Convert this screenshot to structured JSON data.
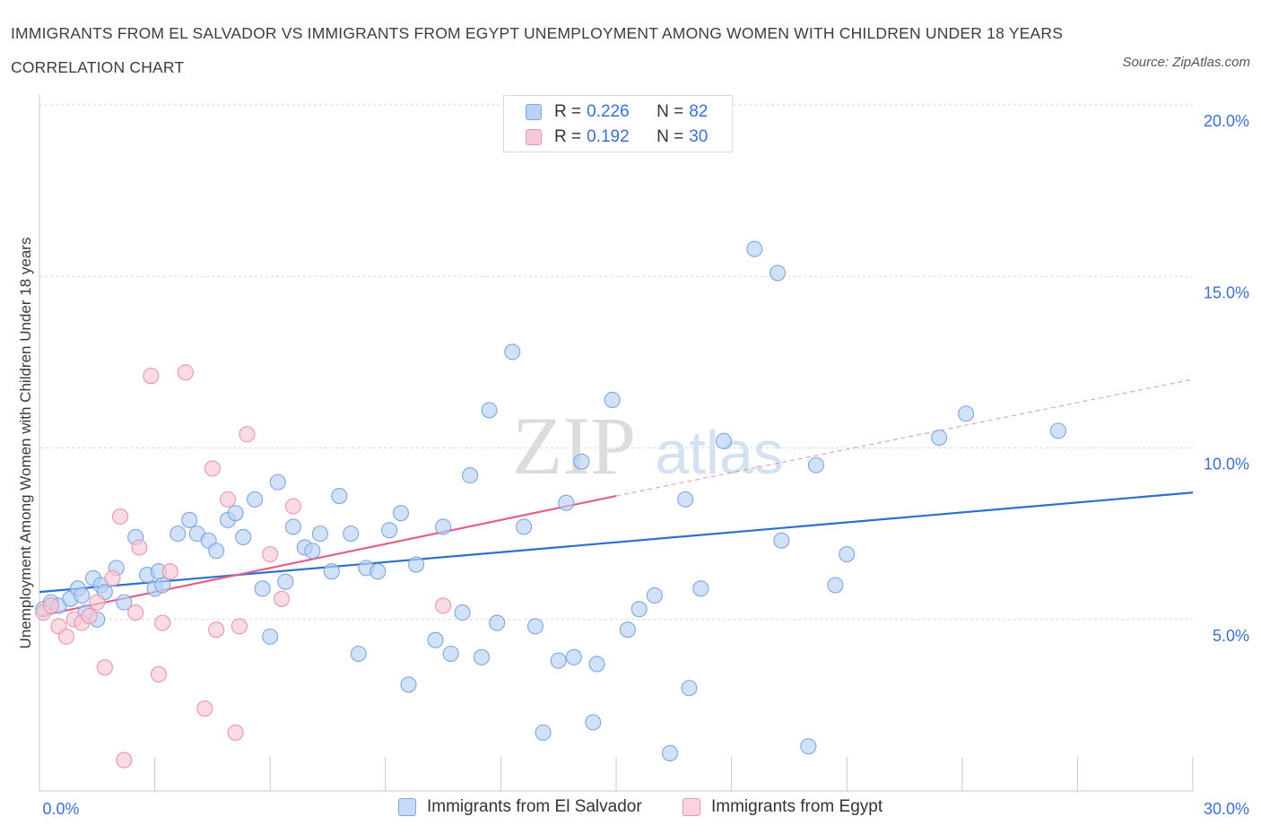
{
  "title": "IMMIGRANTS FROM EL SALVADOR VS IMMIGRANTS FROM EGYPT UNEMPLOYMENT AMONG WOMEN WITH CHILDREN UNDER 18 YEARS CORRELATION CHART",
  "source": "Source: ZipAtlas.com",
  "watermark": {
    "zip": "ZIP",
    "atlas": "atlas"
  },
  "legend": {
    "rows": [
      {
        "r_label": "R =",
        "r_value": "0.226",
        "n_label": "N =",
        "n_value": "82"
      },
      {
        "r_label": "R =",
        "r_value": "0.192",
        "n_label": "N =",
        "n_value": "30"
      }
    ]
  },
  "colors": {
    "blue_fill": "#b8d1f5",
    "blue_stroke": "#7fa6e0",
    "blue_line": "#2e6fcf",
    "pink_fill": "#f8c8d6",
    "pink_stroke": "#e996b0",
    "pink_line": "#e0608e",
    "axis_text": "#3b6fd0",
    "grid": "#d8d8d8"
  },
  "chart_data": {
    "type": "scatter",
    "title": "IMMIGRANTS FROM EL SALVADOR VS IMMIGRANTS FROM EGYPT UNEMPLOYMENT AMONG WOMEN WITH CHILDREN UNDER 18 YEARS CORRELATION CHART",
    "xlabel": "",
    "ylabel": "Unemployment Among Women with Children Under 18 years",
    "xlim": [
      0,
      30
    ],
    "ylim": [
      0,
      20
    ],
    "x_tick_labels": [
      "0.0%",
      "30.0%"
    ],
    "y_tick_labels": [
      "5.0%",
      "10.0%",
      "15.0%",
      "20.0%"
    ],
    "y_ticks": [
      5,
      10,
      15,
      20
    ],
    "grid": true,
    "legend_position": "top-center",
    "series": [
      {
        "name": "Immigrants from El Salvador",
        "color": "#7fa6e0",
        "trend": {
          "x": [
            0,
            30
          ],
          "y": [
            5.8,
            8.7
          ],
          "style": "solid"
        },
        "points": [
          [
            0.1,
            5.3
          ],
          [
            0.3,
            5.5
          ],
          [
            0.5,
            5.4
          ],
          [
            0.8,
            5.6
          ],
          [
            1.0,
            5.9
          ],
          [
            1.1,
            5.7
          ],
          [
            1.2,
            5.2
          ],
          [
            1.4,
            6.2
          ],
          [
            1.6,
            6.0
          ],
          [
            1.7,
            5.8
          ],
          [
            2.0,
            6.5
          ],
          [
            2.2,
            5.5
          ],
          [
            2.5,
            7.4
          ],
          [
            2.8,
            6.3
          ],
          [
            3.0,
            5.9
          ],
          [
            3.2,
            6.0
          ],
          [
            3.6,
            7.5
          ],
          [
            3.9,
            7.9
          ],
          [
            4.1,
            7.5
          ],
          [
            4.4,
            7.3
          ],
          [
            4.6,
            7.0
          ],
          [
            4.9,
            7.9
          ],
          [
            5.1,
            8.1
          ],
          [
            5.3,
            7.4
          ],
          [
            5.6,
            8.5
          ],
          [
            5.8,
            5.9
          ],
          [
            6.0,
            4.5
          ],
          [
            6.2,
            9.0
          ],
          [
            6.4,
            6.1
          ],
          [
            6.6,
            7.7
          ],
          [
            6.9,
            7.1
          ],
          [
            7.1,
            7.0
          ],
          [
            7.3,
            7.5
          ],
          [
            7.6,
            6.4
          ],
          [
            7.8,
            8.6
          ],
          [
            8.1,
            7.5
          ],
          [
            8.3,
            4.0
          ],
          [
            8.5,
            6.5
          ],
          [
            8.8,
            6.4
          ],
          [
            9.1,
            7.6
          ],
          [
            9.4,
            8.1
          ],
          [
            9.6,
            3.1
          ],
          [
            9.8,
            6.6
          ],
          [
            10.3,
            4.4
          ],
          [
            10.5,
            7.7
          ],
          [
            10.7,
            4.0
          ],
          [
            11.0,
            5.2
          ],
          [
            11.2,
            9.2
          ],
          [
            11.5,
            3.9
          ],
          [
            11.7,
            11.1
          ],
          [
            11.9,
            4.9
          ],
          [
            12.3,
            12.8
          ],
          [
            12.6,
            7.7
          ],
          [
            12.9,
            4.8
          ],
          [
            13.1,
            1.7
          ],
          [
            13.5,
            3.8
          ],
          [
            13.7,
            8.4
          ],
          [
            13.9,
            3.9
          ],
          [
            14.1,
            9.6
          ],
          [
            14.4,
            2.0
          ],
          [
            14.5,
            3.7
          ],
          [
            14.9,
            11.4
          ],
          [
            15.3,
            4.7
          ],
          [
            15.6,
            5.3
          ],
          [
            16.0,
            5.7
          ],
          [
            16.4,
            1.1
          ],
          [
            16.8,
            8.5
          ],
          [
            16.9,
            3.0
          ],
          [
            17.2,
            5.9
          ],
          [
            17.8,
            10.2
          ],
          [
            18.6,
            15.8
          ],
          [
            19.2,
            15.1
          ],
          [
            19.3,
            7.3
          ],
          [
            20.0,
            1.3
          ],
          [
            20.2,
            9.5
          ],
          [
            20.7,
            6.0
          ],
          [
            21.0,
            6.9
          ],
          [
            23.4,
            10.3
          ],
          [
            24.1,
            11.0
          ],
          [
            26.5,
            10.5
          ],
          [
            1.5,
            5.0
          ],
          [
            3.1,
            6.4
          ]
        ]
      },
      {
        "name": "Immigrants from Egypt",
        "color": "#e996b0",
        "trend": {
          "x": [
            0,
            15
          ],
          "y": [
            5.1,
            8.6
          ],
          "style": "solid",
          "extended_x": [
            15,
            30
          ],
          "extended_y": [
            8.6,
            12.0
          ]
        },
        "points": [
          [
            0.1,
            5.2
          ],
          [
            0.3,
            5.4
          ],
          [
            0.5,
            4.8
          ],
          [
            0.7,
            4.5
          ],
          [
            0.9,
            5.0
          ],
          [
            1.1,
            4.9
          ],
          [
            1.3,
            5.1
          ],
          [
            1.5,
            5.5
          ],
          [
            1.7,
            3.6
          ],
          [
            1.9,
            6.2
          ],
          [
            2.1,
            8.0
          ],
          [
            2.2,
            0.9
          ],
          [
            2.5,
            5.2
          ],
          [
            2.6,
            7.1
          ],
          [
            2.9,
            12.1
          ],
          [
            3.1,
            3.4
          ],
          [
            3.2,
            4.9
          ],
          [
            3.4,
            6.4
          ],
          [
            3.8,
            12.2
          ],
          [
            4.3,
            2.4
          ],
          [
            4.5,
            9.4
          ],
          [
            4.6,
            4.7
          ],
          [
            4.9,
            8.5
          ],
          [
            5.1,
            1.7
          ],
          [
            5.2,
            4.8
          ],
          [
            5.4,
            10.4
          ],
          [
            6.0,
            6.9
          ],
          [
            6.3,
            5.6
          ],
          [
            6.6,
            8.3
          ],
          [
            10.5,
            5.4
          ]
        ]
      }
    ]
  },
  "bottom_legend": [
    "Immigrants from El Salvador",
    "Immigrants from Egypt"
  ]
}
